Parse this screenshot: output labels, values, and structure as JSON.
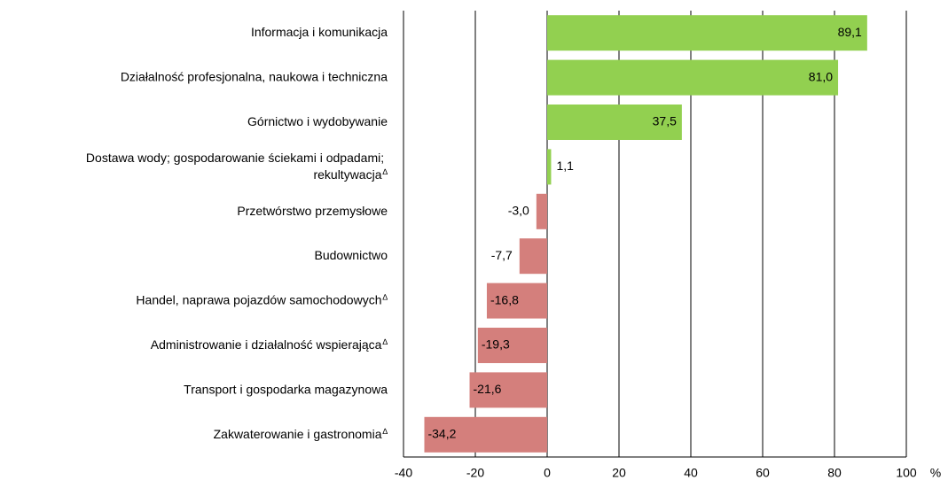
{
  "chart_data": {
    "type": "bar",
    "orientation": "horizontal",
    "categories": [
      "Informacja i komunikacja",
      "Działalność profesjonalna, naukowa i techniczna",
      "Górnictwo i wydobywanie",
      "Dostawa wody; gospodarowanie ściekami i odpadami;\nrekultywacja∆",
      "Przetwórstwo przemysłowe",
      "Budownictwo",
      "Handel, naprawa pojazdów samochodowych∆",
      "Administrowanie i działalność wspierająca∆",
      "Transport i gospodarka magazynowa",
      "Zakwaterowanie i gastronomia∆"
    ],
    "values": [
      89.1,
      81.0,
      37.5,
      1.1,
      -3.0,
      -7.7,
      -16.8,
      -19.3,
      -21.6,
      -34.2
    ],
    "value_labels": [
      "89,1",
      "81,0",
      "37,5",
      "1,1",
      "-3,0",
      "-7,7",
      "-16,8",
      "-19,3",
      "-21,6",
      "-34,2"
    ],
    "colors": [
      "#92d050",
      "#92d050",
      "#92d050",
      "#92d050",
      "#d47f7c",
      "#d47f7c",
      "#d47f7c",
      "#d47f7c",
      "#d47f7c",
      "#d47f7c"
    ],
    "xlim": [
      -40,
      100
    ],
    "xticks": [
      -40,
      -20,
      0,
      20,
      40,
      60,
      80,
      100
    ],
    "x_unit": "%",
    "grid": true
  }
}
